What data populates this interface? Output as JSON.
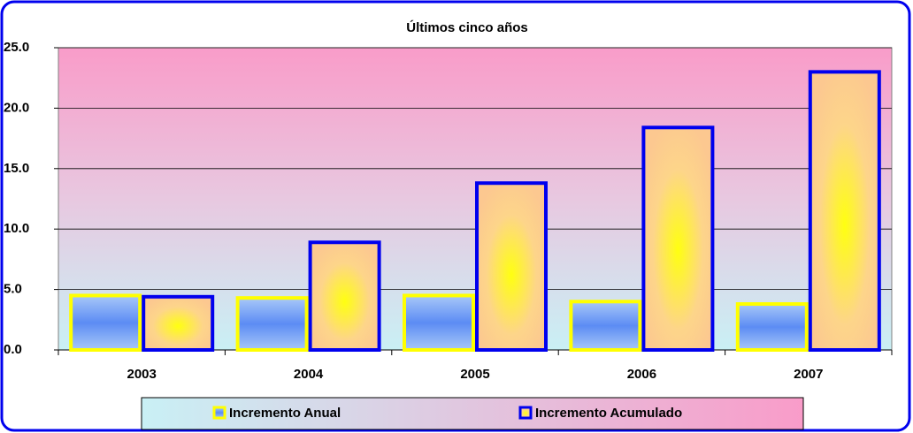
{
  "chart_data": {
    "type": "bar",
    "title": "Últimos cinco años",
    "categories": [
      "2003",
      "2004",
      "2005",
      "2006",
      "2007"
    ],
    "series": [
      {
        "name": "Incremento Anual",
        "color": "#ffff00",
        "values": [
          4.5,
          4.3,
          4.5,
          4.0,
          3.8
        ]
      },
      {
        "name": "Incremento Acumulado",
        "color": "#0000ee",
        "values": [
          4.4,
          8.9,
          13.8,
          18.4,
          23.0
        ]
      }
    ],
    "ylim": [
      0,
      25
    ],
    "yticks": [
      {
        "value": 0,
        "label": "0.0"
      },
      {
        "value": 5,
        "label": "5.0"
      },
      {
        "value": 10,
        "label": "10.0"
      },
      {
        "value": 15,
        "label": "15.0"
      },
      {
        "value": 20,
        "label": "20.0"
      },
      {
        "value": 25,
        "label": "25.0"
      }
    ],
    "grid": true,
    "legend": "bottom"
  }
}
